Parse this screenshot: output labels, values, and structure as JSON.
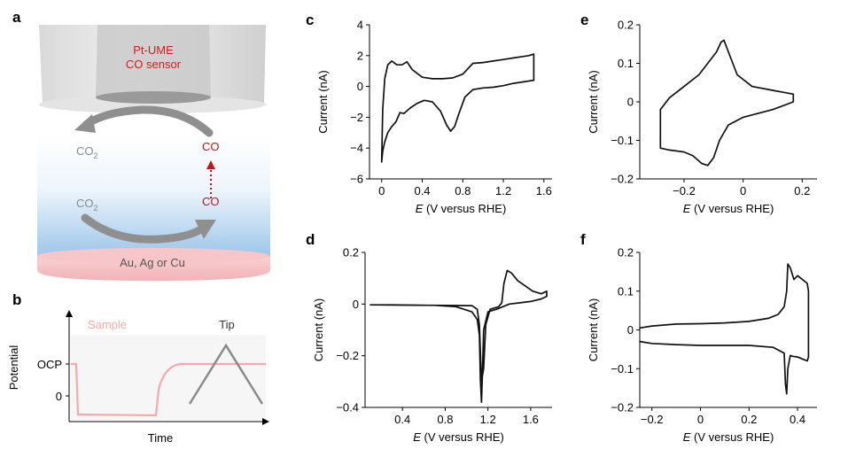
{
  "panel_labels": {
    "a": "a",
    "b": "b",
    "c": "c",
    "d": "d",
    "e": "e",
    "f": "f"
  },
  "schematic_a": {
    "sensor_title": "Pt-UME",
    "sensor_subtitle": "CO sensor",
    "tip_product": "CO",
    "tip_reactant": "CO",
    "tip_reactant_sub": "2",
    "surface_reactant": "CO",
    "surface_reactant_sub": "2",
    "surface_product": "CO",
    "substrate": "Au, Ag or Cu",
    "colors": {
      "sensor_text": "#cc1f1f",
      "co_text": "#c0141a",
      "substrate": "#f6c3c5",
      "solution": "#9dc6ea",
      "arrow": "#8f8f8f"
    }
  },
  "schematic_b": {
    "y_label": "Potential",
    "x_label": "Time",
    "tick_ocp": "OCP",
    "tick_zero": "0",
    "sample_label": "Sample",
    "tip_label": "Tip",
    "colors": {
      "sample": "#f4a9ad",
      "tip": "#8a8a8a"
    }
  },
  "chart_data": [
    {
      "panel": "c",
      "type": "line",
      "xlabel_italic": "E",
      "xlabel_rest": " (V versus RHE)",
      "ylabel": "Current (nA)",
      "xlim": [
        -0.12,
        1.68
      ],
      "ylim": [
        -6,
        4
      ],
      "xticks": [
        0,
        0.4,
        0.8,
        1.2,
        1.6
      ],
      "xticklabels": [
        "0",
        "0.4",
        "0.8",
        "1.2",
        "1.6"
      ],
      "yticks": [
        -6,
        -4,
        -2,
        0,
        2,
        4
      ],
      "yticklabels": [
        "−6",
        "−4",
        "−2",
        "0",
        "2",
        "4"
      ],
      "series": [
        {
          "x": [
            0.0,
            0.01,
            0.03,
            0.06,
            0.1,
            0.15,
            0.2,
            0.25,
            0.3,
            0.4,
            0.5,
            0.6,
            0.7,
            0.8,
            0.9,
            1.0,
            1.1,
            1.2,
            1.3,
            1.4,
            1.45,
            1.5,
            1.5,
            1.45,
            1.4,
            1.3,
            1.2,
            1.1,
            1.0,
            0.9,
            0.82,
            0.76,
            0.72,
            0.68,
            0.64,
            0.58,
            0.5,
            0.42,
            0.35,
            0.28,
            0.22,
            0.18,
            0.14,
            0.1,
            0.06,
            0.03,
            0.01,
            0.0
          ],
          "y": [
            -4.9,
            -1.5,
            0.5,
            1.4,
            1.65,
            1.4,
            1.4,
            1.6,
            1.1,
            0.6,
            0.5,
            0.5,
            0.55,
            0.8,
            1.5,
            1.55,
            1.65,
            1.75,
            1.85,
            1.95,
            2.0,
            2.1,
            0.4,
            0.35,
            0.3,
            0.2,
            0.05,
            -0.05,
            -0.1,
            -0.2,
            -0.7,
            -1.8,
            -2.6,
            -2.9,
            -2.5,
            -1.6,
            -1.0,
            -0.9,
            -1.1,
            -1.4,
            -1.75,
            -1.7,
            -2.3,
            -2.6,
            -3.0,
            -3.6,
            -4.2,
            -4.9
          ]
        }
      ]
    },
    {
      "panel": "d",
      "type": "line",
      "xlabel_italic": "E",
      "xlabel_rest": " (V versus RHE)",
      "ylabel": "Current (nA)",
      "xlim": [
        0.05,
        1.8
      ],
      "ylim": [
        -0.4,
        0.2
      ],
      "xticks": [
        0.4,
        0.8,
        1.2,
        1.6
      ],
      "xticklabels": [
        "0.4",
        "0.8",
        "1.2",
        "1.6"
      ],
      "yticks": [
        -0.4,
        -0.2,
        0,
        0.2
      ],
      "yticklabels": [
        "−0.4",
        "−0.2",
        "0",
        "0.2"
      ],
      "series": [
        {
          "x": [
            0.1,
            0.4,
            0.8,
            1.05,
            1.1,
            1.12,
            1.14,
            1.16,
            1.18,
            1.22,
            1.3,
            1.33,
            1.35,
            1.38,
            1.42,
            1.48,
            1.55,
            1.62,
            1.7,
            1.75,
            1.75,
            1.7,
            1.6,
            1.5,
            1.4,
            1.34,
            1.28,
            1.2,
            1.16,
            1.15,
            1.14,
            1.13,
            1.12,
            1.1,
            1.05,
            0.9,
            0.7,
            0.5,
            0.3,
            0.1
          ],
          "y": [
            -0.003,
            -0.004,
            -0.005,
            -0.006,
            -0.02,
            -0.08,
            -0.3,
            -0.25,
            -0.08,
            -0.02,
            -0.01,
            0.005,
            0.08,
            0.13,
            0.12,
            0.09,
            0.07,
            0.05,
            0.04,
            0.05,
            0.03,
            0.02,
            0.01,
            0.005,
            0.0,
            -0.01,
            -0.02,
            -0.03,
            -0.1,
            -0.25,
            -0.38,
            -0.3,
            -0.12,
            -0.06,
            -0.03,
            -0.01,
            -0.005,
            -0.004,
            -0.003,
            -0.003
          ]
        }
      ]
    },
    {
      "panel": "e",
      "type": "line",
      "xlabel_italic": "E",
      "xlabel_rest": " (V versus RHE)",
      "ylabel": "Current (nA)",
      "xlim": [
        -0.35,
        0.25
      ],
      "ylim": [
        -0.2,
        0.2
      ],
      "xticks": [
        -0.2,
        0,
        0.2
      ],
      "xticklabels": [
        "−0.2",
        "0",
        "0.2"
      ],
      "yticks": [
        -0.2,
        -0.1,
        0,
        0.1,
        0.2
      ],
      "yticklabels": [
        "−0.2",
        "−0.1",
        "0",
        "0.1",
        "0.2"
      ],
      "series": [
        {
          "x": [
            -0.28,
            -0.25,
            -0.2,
            -0.15,
            -0.12,
            -0.09,
            -0.075,
            -0.065,
            -0.05,
            -0.02,
            0.03,
            0.1,
            0.17,
            0.17,
            0.1,
            0.0,
            -0.05,
            -0.08,
            -0.1,
            -0.12,
            -0.14,
            -0.17,
            -0.2,
            -0.25,
            -0.28,
            -0.28
          ],
          "y": [
            -0.02,
            0.01,
            0.04,
            0.07,
            0.1,
            0.13,
            0.155,
            0.16,
            0.13,
            0.07,
            0.04,
            0.03,
            0.02,
            0.0,
            -0.02,
            -0.04,
            -0.06,
            -0.1,
            -0.145,
            -0.165,
            -0.16,
            -0.14,
            -0.13,
            -0.125,
            -0.12,
            -0.02
          ]
        }
      ]
    },
    {
      "panel": "f",
      "type": "line",
      "xlabel_italic": "E",
      "xlabel_rest": " (V versus RHE)",
      "ylabel": "Current (nA)",
      "xlim": [
        -0.25,
        0.48
      ],
      "ylim": [
        -0.2,
        0.2
      ],
      "xticks": [
        -0.2,
        0,
        0.2,
        0.4
      ],
      "xticklabels": [
        "−0.2",
        "0",
        "0.2",
        "0.4"
      ],
      "yticks": [
        -0.2,
        -0.1,
        0,
        0.1,
        0.2
      ],
      "yticklabels": [
        "−0.2",
        "−0.1",
        "0",
        "0.1",
        "0.2"
      ],
      "series": [
        {
          "x": [
            -0.25,
            -0.2,
            -0.1,
            0.0,
            0.1,
            0.2,
            0.28,
            0.32,
            0.345,
            0.355,
            0.36,
            0.37,
            0.385,
            0.4,
            0.42,
            0.44,
            0.445,
            0.445,
            0.44,
            0.42,
            0.4,
            0.38,
            0.37,
            0.36,
            0.355,
            0.35,
            0.345,
            0.3,
            0.2,
            0.1,
            0.0,
            -0.1,
            -0.2,
            -0.25
          ],
          "y": [
            0.005,
            0.01,
            0.015,
            0.016,
            0.018,
            0.022,
            0.03,
            0.04,
            0.06,
            0.1,
            0.17,
            0.16,
            0.13,
            0.14,
            0.13,
            0.12,
            0.1,
            -0.07,
            -0.08,
            -0.075,
            -0.07,
            -0.068,
            -0.066,
            -0.1,
            -0.165,
            -0.14,
            -0.06,
            -0.045,
            -0.04,
            -0.04,
            -0.04,
            -0.038,
            -0.035,
            -0.03
          ]
        }
      ]
    }
  ]
}
